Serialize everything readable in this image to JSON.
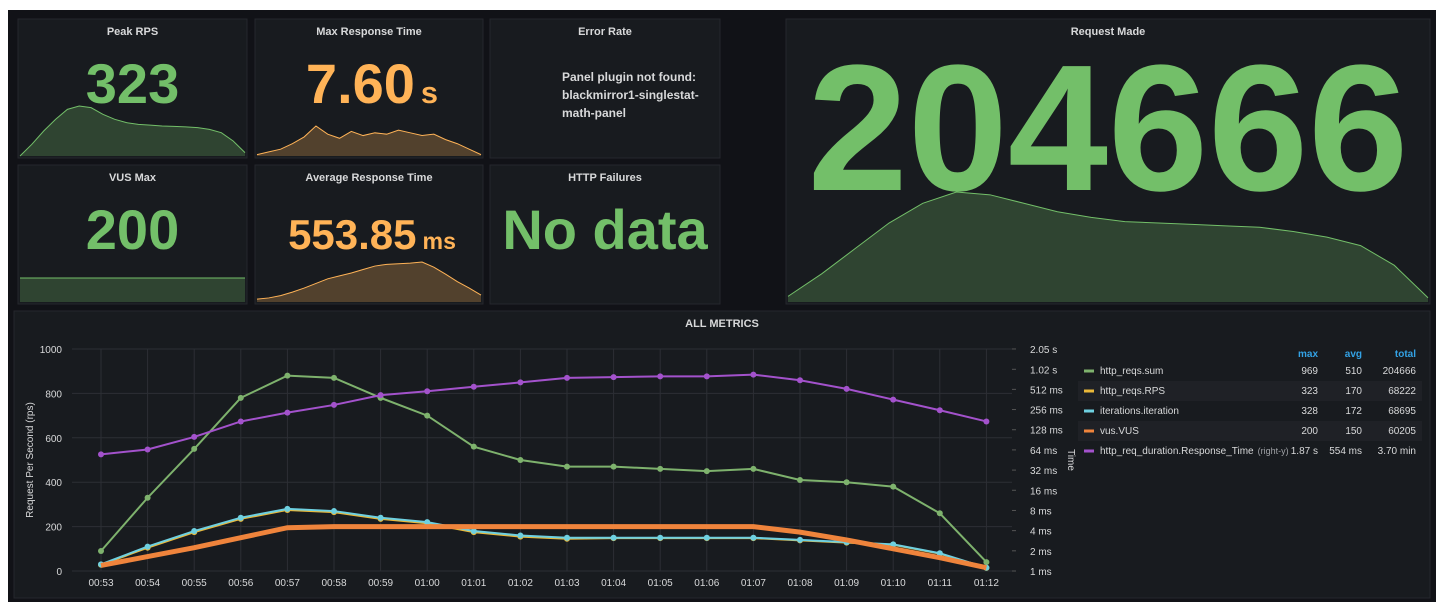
{
  "panels": [
    {
      "title": "Peak RPS",
      "value": "323",
      "color": "#73bf69",
      "sparkline": [
        0,
        70,
        150,
        220,
        280,
        300,
        290,
        250,
        220,
        200,
        190,
        185,
        180,
        178,
        175,
        170,
        160,
        140,
        90,
        20
      ]
    },
    {
      "title": "Max Response Time",
      "value": "7.60",
      "unit": "s",
      "color": "#ffb357",
      "sparkline": [
        0.1,
        0.3,
        0.5,
        0.9,
        1.4,
        2.2,
        1.6,
        1.3,
        1.8,
        1.5,
        1.7,
        1.6,
        1.9,
        1.7,
        1.5,
        1.6,
        1.2,
        0.9,
        0.5,
        0.1
      ]
    },
    {
      "title": "Error Rate",
      "message": "Panel plugin not found: blackmirror1-singlestat-math-panel"
    },
    {
      "title": "VUS Max",
      "value": "200",
      "color": "#73bf69",
      "sparkline": [
        200,
        200,
        200,
        200,
        200,
        200,
        200,
        200,
        200,
        200,
        200,
        200,
        200,
        200,
        200,
        200,
        200,
        200,
        200,
        200
      ]
    },
    {
      "title": "Average Response Time",
      "value": "553.85",
      "unit": "ms",
      "color": "#ffb357",
      "sparkline": [
        50,
        70,
        110,
        170,
        240,
        320,
        400,
        450,
        500,
        560,
        620,
        650,
        660,
        670,
        690,
        600,
        480,
        350,
        240,
        120
      ]
    },
    {
      "title": "HTTP Failures",
      "value": "No data",
      "color": "#73bf69"
    },
    {
      "title": "Request Made",
      "value": "204666",
      "color": "#73bf69",
      "sparkline": [
        40,
        200,
        380,
        560,
        700,
        780,
        760,
        700,
        640,
        600,
        570,
        560,
        550,
        540,
        530,
        500,
        460,
        400,
        260,
        30
      ]
    }
  ],
  "chart_data": {
    "type": "line",
    "title": "ALL METRICS",
    "y_label": "Request Per Second (rps)",
    "y2_label": "Time",
    "grid": true,
    "x": [
      "00:53",
      "00:54",
      "00:55",
      "00:56",
      "00:57",
      "00:58",
      "00:59",
      "01:00",
      "01:01",
      "01:02",
      "01:03",
      "01:04",
      "01:05",
      "01:06",
      "01:07",
      "01:08",
      "01:09",
      "01:10",
      "01:11",
      "01:12"
    ],
    "ylim": [
      0,
      1000
    ],
    "yticks": [
      0,
      200,
      400,
      600,
      800,
      1000
    ],
    "y2scale": "log",
    "y2lim": [
      1,
      2048
    ],
    "y2ticks": [
      {
        "value": 1,
        "label": "1 ms"
      },
      {
        "value": 2,
        "label": "2 ms"
      },
      {
        "value": 4,
        "label": "4 ms"
      },
      {
        "value": 8,
        "label": "8 ms"
      },
      {
        "value": 16,
        "label": "16 ms"
      },
      {
        "value": 32,
        "label": "32 ms"
      },
      {
        "value": 64,
        "label": "64 ms"
      },
      {
        "value": 128,
        "label": "128 ms"
      },
      {
        "value": 256,
        "label": "256 ms"
      },
      {
        "value": 512,
        "label": "512 ms"
      },
      {
        "value": 1020,
        "label": "1.02 s"
      },
      {
        "value": 2050,
        "label": "2.05 s"
      }
    ],
    "legend_columns": [
      "max",
      "avg",
      "total"
    ],
    "series": [
      {
        "name": "http_reqs.sum",
        "color": "#7eb26d",
        "stats": [
          "969",
          "510",
          "204666"
        ],
        "values": [
          90,
          330,
          550,
          780,
          880,
          870,
          780,
          700,
          560,
          500,
          470,
          470,
          460,
          450,
          460,
          410,
          400,
          380,
          260,
          40
        ]
      },
      {
        "name": "http_reqs.RPS",
        "color": "#eab839",
        "stats": [
          "323",
          "170",
          "68222"
        ],
        "values": [
          28,
          105,
          175,
          235,
          275,
          265,
          235,
          215,
          175,
          155,
          145,
          148,
          148,
          148,
          148,
          138,
          128,
          118,
          78,
          14
        ]
      },
      {
        "name": "iterations.iteration",
        "color": "#6ed0e0",
        "stats": [
          "328",
          "172",
          "68695"
        ],
        "values": [
          30,
          110,
          180,
          240,
          280,
          270,
          240,
          220,
          180,
          160,
          150,
          150,
          150,
          150,
          150,
          140,
          130,
          120,
          80,
          15
        ]
      },
      {
        "name": "vus.VUS",
        "color": "#ef843c",
        "stats": [
          "200",
          "150",
          "60205"
        ],
        "values": [
          25,
          65,
          105,
          150,
          195,
          200,
          200,
          200,
          200,
          200,
          200,
          200,
          200,
          200,
          200,
          175,
          140,
          100,
          60,
          15
        ]
      },
      {
        "name": "http_req_duration.Response_Time",
        "note": "(right-y)",
        "axis": "y2",
        "color": "#a352cc",
        "stats": [
          "1.87 s",
          "554 ms",
          "3.70 min"
        ],
        "values": [
          55,
          65,
          100,
          170,
          230,
          300,
          420,
          480,
          560,
          650,
          760,
          780,
          800,
          800,
          850,
          700,
          520,
          360,
          250,
          170
        ]
      }
    ]
  }
}
